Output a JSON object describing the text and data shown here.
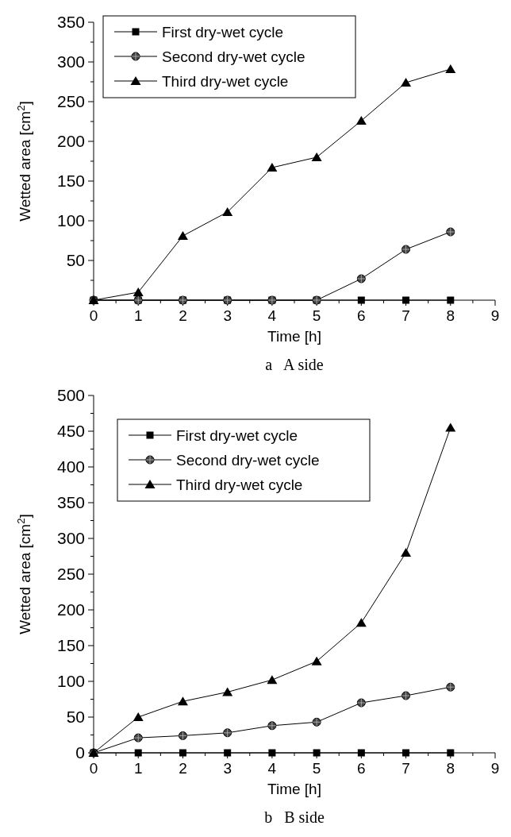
{
  "chart_data": [
    {
      "type": "line",
      "xlabel": "Time [h]",
      "ylabel": "Wetted area [cm$^{2}$]",
      "annotations": [
        "a   A side"
      ],
      "x": [
        0,
        1,
        2,
        3,
        4,
        5,
        6,
        7,
        8
      ],
      "xlim": [
        0,
        9
      ],
      "xticks": [
        0,
        {
          "value": 0.5,
          "label": null
        },
        1,
        {
          "value": 1.5,
          "label": null
        },
        2,
        {
          "value": 2.5,
          "label": null
        },
        3,
        {
          "value": 3.5,
          "label": null
        },
        4,
        {
          "value": 4.5,
          "label": null
        },
        5,
        {
          "value": 5.5,
          "label": null
        },
        6,
        {
          "value": 6.5,
          "label": null
        },
        7,
        {
          "value": 7.5,
          "label": null
        },
        8,
        {
          "value": 8.5,
          "label": null
        },
        9
      ],
      "ylim": [
        0,
        350
      ],
      "yticks": [
        {
          "value": 25,
          "label": null
        },
        50,
        {
          "value": 75,
          "label": null
        },
        100,
        {
          "value": 125,
          "label": null
        },
        150,
        {
          "value": 175,
          "label": null
        },
        200,
        {
          "value": 225,
          "label": null
        },
        250,
        {
          "value": 275,
          "label": null
        },
        300,
        {
          "value": 325,
          "label": null
        },
        350
      ],
      "grid": false,
      "legend": "top",
      "line_style": "solid",
      "series": [
        {
          "name": "First dry-wet cycle",
          "color": "#000000",
          "marker": "square",
          "values": [
            0,
            0,
            0,
            0,
            0,
            0,
            0,
            0,
            0
          ]
        },
        {
          "name": "Second dry-wet cycle",
          "color": "#000000",
          "marker": "circle",
          "values": [
            0,
            0,
            0,
            0,
            0,
            0,
            27,
            64,
            86
          ]
        },
        {
          "name": "Third dry-wet cycle",
          "color": "#000000",
          "marker": "triangle",
          "values": [
            0,
            10,
            81,
            111,
            167,
            180,
            226,
            274,
            291
          ]
        }
      ]
    },
    {
      "type": "line",
      "xlabel": "Time [h]",
      "ylabel": "Wetted area [cm$^{2}$]",
      "annotations": [
        "b   B side"
      ],
      "x": [
        0,
        1,
        2,
        3,
        4,
        5,
        6,
        7,
        8
      ],
      "xlim": [
        0,
        9
      ],
      "xticks": [
        0,
        {
          "value": 0.5,
          "label": null
        },
        1,
        {
          "value": 1.5,
          "label": null
        },
        2,
        {
          "value": 2.5,
          "label": null
        },
        3,
        {
          "value": 3.5,
          "label": null
        },
        4,
        {
          "value": 4.5,
          "label": null
        },
        5,
        {
          "value": 5.5,
          "label": null
        },
        6,
        {
          "value": 6.5,
          "label": null
        },
        7,
        {
          "value": 7.5,
          "label": null
        },
        8,
        {
          "value": 8.5,
          "label": null
        },
        9
      ],
      "ylim": [
        0,
        500
      ],
      "yticks": [
        0,
        {
          "value": 25,
          "label": null
        },
        50,
        {
          "value": 75,
          "label": null
        },
        100,
        {
          "value": 125,
          "label": null
        },
        150,
        {
          "value": 175,
          "label": null
        },
        200,
        {
          "value": 225,
          "label": null
        },
        250,
        {
          "value": 275,
          "label": null
        },
        300,
        {
          "value": 325,
          "label": null
        },
        350,
        {
          "value": 375,
          "label": null
        },
        400,
        {
          "value": 425,
          "label": null
        },
        450,
        {
          "value": 475,
          "label": null
        },
        500
      ],
      "grid": false,
      "legend": "top",
      "line_style": "solid",
      "series": [
        {
          "name": "First dry-wet cycle",
          "color": "#000000",
          "marker": "square",
          "values": [
            0,
            0,
            0,
            0,
            0,
            0,
            0,
            0,
            0
          ]
        },
        {
          "name": "Second dry-wet cycle",
          "color": "#000000",
          "marker": "circle",
          "values": [
            0,
            21,
            24,
            28,
            38,
            43,
            70,
            80,
            92
          ]
        },
        {
          "name": "Third dry-wet cycle",
          "color": "#000000",
          "marker": "triangle",
          "values": [
            0,
            50,
            72,
            85,
            102,
            128,
            182,
            280,
            455
          ]
        }
      ]
    }
  ]
}
